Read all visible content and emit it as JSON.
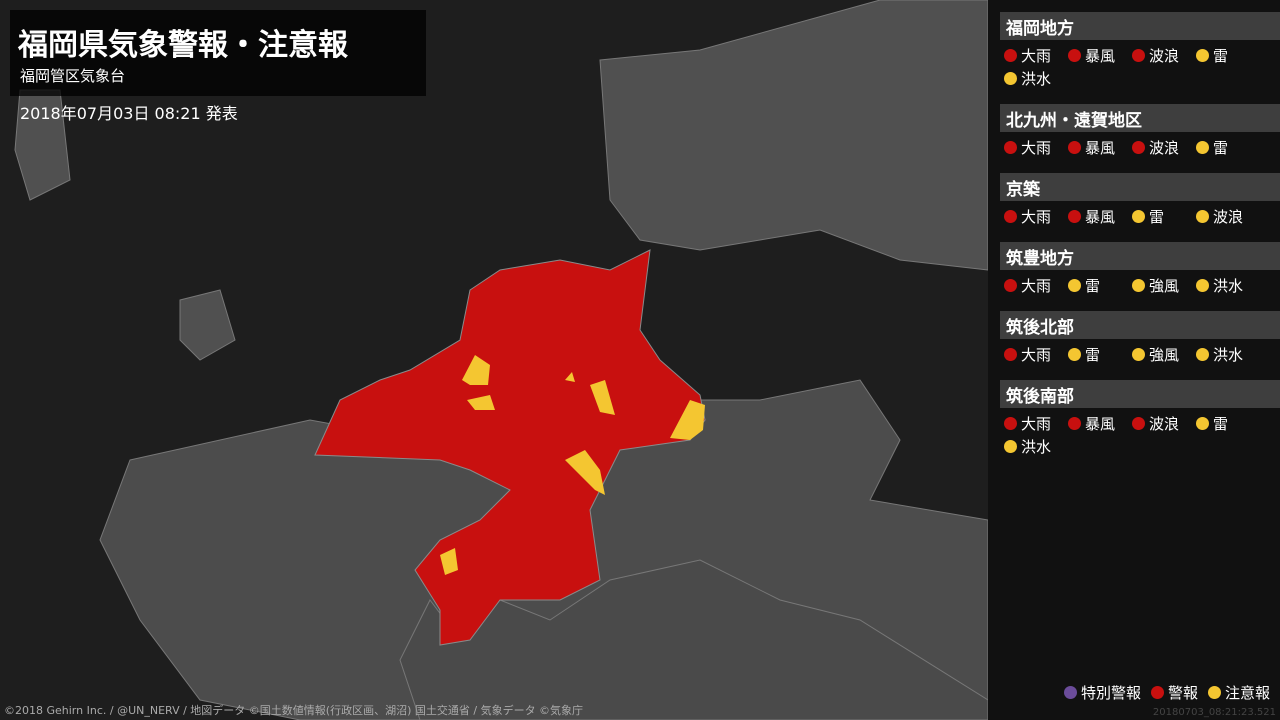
{
  "header": {
    "title": "福岡県気象警報・注意報",
    "office": "福岡管区気象台",
    "issued": "2018年07月03日 08:21 発表"
  },
  "regions": [
    {
      "name": "福岡地方",
      "items": [
        {
          "label": "大雨",
          "color": "#c8100f"
        },
        {
          "label": "暴風",
          "color": "#c8100f"
        },
        {
          "label": "波浪",
          "color": "#c8100f"
        },
        {
          "label": "雷",
          "color": "#f4c631"
        },
        {
          "label": "洪水",
          "color": "#f4c631"
        }
      ]
    },
    {
      "name": "北九州・遠賀地区",
      "items": [
        {
          "label": "大雨",
          "color": "#c8100f"
        },
        {
          "label": "暴風",
          "color": "#c8100f"
        },
        {
          "label": "波浪",
          "color": "#c8100f"
        },
        {
          "label": "雷",
          "color": "#f4c631"
        }
      ]
    },
    {
      "name": "京築",
      "items": [
        {
          "label": "大雨",
          "color": "#c8100f"
        },
        {
          "label": "暴風",
          "color": "#c8100f"
        },
        {
          "label": "雷",
          "color": "#f4c631"
        },
        {
          "label": "波浪",
          "color": "#f4c631"
        }
      ]
    },
    {
      "name": "筑豊地方",
      "items": [
        {
          "label": "大雨",
          "color": "#c8100f"
        },
        {
          "label": "雷",
          "color": "#f4c631"
        },
        {
          "label": "強風",
          "color": "#f4c631"
        },
        {
          "label": "洪水",
          "color": "#f4c631"
        }
      ]
    },
    {
      "name": "筑後北部",
      "items": [
        {
          "label": "大雨",
          "color": "#c8100f"
        },
        {
          "label": "雷",
          "color": "#f4c631"
        },
        {
          "label": "強風",
          "color": "#f4c631"
        },
        {
          "label": "洪水",
          "color": "#f4c631"
        }
      ]
    },
    {
      "name": "筑後南部",
      "items": [
        {
          "label": "大雨",
          "color": "#c8100f"
        },
        {
          "label": "暴風",
          "color": "#c8100f"
        },
        {
          "label": "波浪",
          "color": "#c8100f"
        },
        {
          "label": "雷",
          "color": "#f4c631"
        },
        {
          "label": "洪水",
          "color": "#f4c631"
        }
      ]
    }
  ],
  "legend": [
    {
      "label": "特別警報",
      "color": "#6b4c9a"
    },
    {
      "label": "警報",
      "color": "#c8100f"
    },
    {
      "label": "注意報",
      "color": "#f4c631"
    }
  ],
  "footer": {
    "credits": "©2018 Gehirn Inc. / @UN_NERV / 地図データ ©国土数値情報(行政区画、湖沼) 国土交通省 / 気象データ ©気象庁",
    "stamp": "20180703_08:21:23.521"
  }
}
